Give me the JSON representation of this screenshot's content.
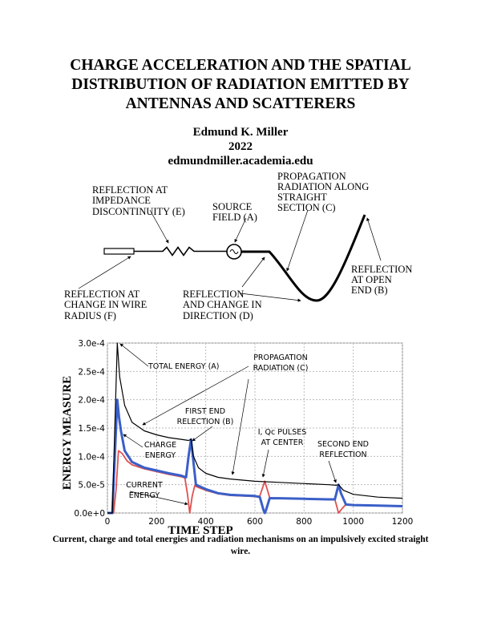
{
  "title": "CHARGE ACCELERATION AND THE SPATIAL DISTRIBUTION OF RADIATION EMITTED BY ANTENNAS AND SCATTERERS",
  "author": "Edmund K. Miller",
  "year": "2022",
  "website": "edmundmiller.academia.edu",
  "diagram": {
    "label_e": [
      "REFLECTION AT",
      "IMPEDANCE",
      "DISCONTINUITY (E)"
    ],
    "label_a": [
      "SOURCE",
      "FIELD (A)"
    ],
    "label_c": [
      "PROPAGATION",
      "RADIATION ALONG",
      "STRAIGHT",
      "SECTION (C)"
    ],
    "label_b": [
      "REFLECTION",
      "AT OPEN",
      "END (B)"
    ],
    "label_f": [
      "REFLECTION AT",
      "CHANGE IN WIRE",
      "RADIUS (F)"
    ],
    "label_d": [
      "REFLECTION",
      "AND CHANGE IN",
      "DIRECTION (D)"
    ]
  },
  "chart_data": {
    "type": "line",
    "xlabel": "TIME STEP",
    "ylabel": "ENERGY MEASURE",
    "xlim": [
      0,
      1200
    ],
    "ylim": [
      0,
      0.0003
    ],
    "xticks": [
      "0",
      "200",
      "400",
      "600",
      "800",
      "1000",
      "1200"
    ],
    "yticks": [
      "0.0e+0",
      "5.0e-5",
      "1.0e-4",
      "1.5e-4",
      "2.0e-4",
      "2.5e-4",
      "3.0e-4"
    ],
    "grid": true,
    "series": [
      {
        "color": "#000000",
        "x": [
          0,
          20,
          30,
          40,
          50,
          70,
          100,
          150,
          200,
          250,
          300,
          330,
          340,
          350,
          370,
          400,
          450,
          500,
          600,
          700,
          800,
          900,
          930,
          940,
          960,
          1000,
          1100,
          1200
        ],
        "y": [
          0,
          0,
          0.00015,
          0.0003,
          0.00024,
          0.00019,
          0.00016,
          0.000145,
          0.000138,
          0.000133,
          0.00013,
          0.000128,
          0.00013,
          0.0001,
          8e-05,
          7e-05,
          6.3e-05,
          6e-05,
          5.6e-05,
          5.4e-05,
          5.2e-05,
          5e-05,
          4.9e-05,
          5e-05,
          4e-05,
          3.3e-05,
          2.8e-05,
          2.6e-05
        ]
      },
      {
        "color": "#3a5fc8",
        "x": [
          0,
          20,
          30,
          40,
          47,
          55,
          70,
          100,
          150,
          200,
          250,
          300,
          320,
          330,
          340,
          350,
          360,
          400,
          450,
          500,
          600,
          620,
          635,
          640,
          645,
          660,
          700,
          800,
          900,
          925,
          940,
          950,
          970,
          1000,
          1100,
          1200
        ],
        "y": [
          0,
          0,
          0.0001,
          0.0002,
          0.00017,
          0.000145,
          0.00011,
          9e-05,
          8e-05,
          7.5e-05,
          7e-05,
          6.6e-05,
          6.3e-05,
          0.0001,
          0.00013,
          9e-05,
          5e-05,
          4.2e-05,
          3.5e-05,
          3.2e-05,
          3e-05,
          2.8e-05,
          5e-06,
          0,
          5e-06,
          2.6e-05,
          2.6e-05,
          2.5e-05,
          2.4e-05,
          2.4e-05,
          5e-05,
          3.5e-05,
          1.5e-05,
          1.4e-05,
          1.3e-05,
          1.2e-05
        ]
      },
      {
        "color": "#e05050",
        "x": [
          0,
          25,
          35,
          45,
          60,
          80,
          100,
          150,
          200,
          250,
          300,
          315,
          325,
          335,
          345,
          355,
          370,
          400,
          450,
          500,
          600,
          620,
          640,
          660,
          700,
          800,
          900,
          925,
          940,
          955,
          970,
          1000,
          1100,
          1200
        ],
        "y": [
          0,
          0,
          4e-05,
          0.00011,
          0.000105,
          9.2e-05,
          8.5e-05,
          7.8e-05,
          7.3e-05,
          6.8e-05,
          6.4e-05,
          6.2e-05,
          3.5e-05,
          0,
          3e-05,
          4.8e-05,
          4.5e-05,
          4e-05,
          3.4e-05,
          3.1e-05,
          2.9e-05,
          3e-05,
          5.6e-05,
          2.7e-05,
          2.6e-05,
          2.5e-05,
          2.4e-05,
          2.4e-05,
          0,
          8e-06,
          1.5e-05,
          1.4e-05,
          1.3e-05,
          1.2e-05
        ]
      }
    ],
    "annotations": [
      {
        "id": "total",
        "lines": [
          "TOTAL ENERGY (A)"
        ]
      },
      {
        "id": "prop",
        "lines": [
          "PROPAGATION",
          "RADIATION (C)"
        ]
      },
      {
        "id": "first",
        "lines": [
          "FIRST END",
          "RELECTION (B)"
        ]
      },
      {
        "id": "charge",
        "lines": [
          "CHARGE",
          "ENERGY"
        ]
      },
      {
        "id": "current",
        "lines": [
          "CURRENT",
          "ENERGY"
        ]
      },
      {
        "id": "pulses",
        "lines": [
          "I, Qc PULSES",
          "AT CENTER"
        ]
      },
      {
        "id": "second",
        "lines": [
          "SECOND END",
          "REFLECTION"
        ]
      }
    ]
  },
  "caption": "Current, charge and total energies and radiation mechanisms on an impulsively excited straight wire."
}
